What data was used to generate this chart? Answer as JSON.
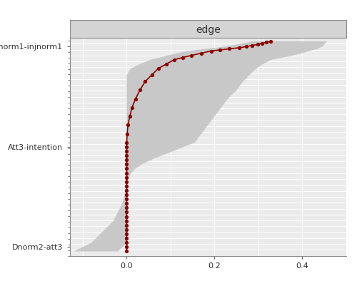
{
  "title": "edge",
  "title_bg": "#d4d4d4",
  "plot_bg": "#ebebeb",
  "ytick_labels": [
    "Dnorm2-att3",
    "Att3-intention",
    "Dnorm1-injnorm1"
  ],
  "ytick_positions": [
    0.04,
    0.5,
    0.96
  ],
  "xlim": [
    -0.13,
    0.5
  ],
  "ylim": [
    0.0,
    1.0
  ],
  "xticks": [
    0.0,
    0.2,
    0.4
  ],
  "xtick_labels": [
    "0.0",
    "0.2",
    "0.4"
  ],
  "line_color": "#8b0000",
  "ci_color": "#c8c8c8",
  "grid_color": "#ffffff",
  "n_hgrid": 38,
  "vgrid_x": [
    -0.1,
    0.0,
    0.1,
    0.2,
    0.3,
    0.4
  ],
  "line_x": [
    0.0,
    0.0,
    0.0,
    0.0,
    0.0,
    0.0,
    0.0,
    0.0,
    0.0,
    0.0,
    0.0,
    0.0,
    0.0,
    0.0,
    0.0,
    0.0,
    0.0,
    0.0,
    0.0,
    0.0,
    0.0,
    0.0,
    0.0,
    0.0,
    0.0,
    0.0,
    0.001,
    0.003,
    0.007,
    0.012,
    0.02,
    0.03,
    0.042,
    0.057,
    0.072,
    0.09,
    0.108,
    0.127,
    0.148,
    0.17,
    0.192,
    0.213,
    0.234,
    0.256,
    0.272,
    0.285,
    0.298,
    0.308,
    0.318,
    0.328
  ],
  "line_y": [
    0.02,
    0.04,
    0.06,
    0.08,
    0.1,
    0.12,
    0.14,
    0.16,
    0.18,
    0.2,
    0.22,
    0.24,
    0.26,
    0.28,
    0.3,
    0.32,
    0.34,
    0.36,
    0.38,
    0.4,
    0.42,
    0.44,
    0.46,
    0.48,
    0.5,
    0.52,
    0.56,
    0.6,
    0.64,
    0.68,
    0.72,
    0.76,
    0.8,
    0.83,
    0.86,
    0.88,
    0.9,
    0.91,
    0.92,
    0.93,
    0.94,
    0.945,
    0.95,
    0.955,
    0.96,
    0.965,
    0.97,
    0.975,
    0.98,
    0.985
  ],
  "ci_lower_x": [
    -0.12,
    -0.1,
    -0.08,
    -0.07,
    -0.06,
    -0.05,
    -0.04,
    -0.03,
    -0.025,
    -0.02,
    -0.015,
    -0.01,
    -0.007,
    -0.005,
    -0.003,
    -0.002,
    -0.001,
    0.0,
    0.0,
    0.0,
    0.0,
    0.0,
    0.0,
    0.0,
    0.0,
    0.0,
    0.0,
    0.0,
    0.0,
    0.0,
    0.0,
    0.0,
    0.0,
    0.0,
    0.01,
    0.03,
    0.055,
    0.075,
    0.095,
    0.115,
    0.138,
    0.16,
    0.182,
    0.204,
    0.22,
    0.236,
    0.252,
    0.264,
    0.276,
    0.288
  ],
  "ci_lower_y": [
    0.02,
    0.04,
    0.06,
    0.08,
    0.1,
    0.12,
    0.14,
    0.16,
    0.18,
    0.2,
    0.22,
    0.24,
    0.26,
    0.28,
    0.3,
    0.32,
    0.34,
    0.36,
    0.38,
    0.4,
    0.42,
    0.44,
    0.46,
    0.48,
    0.5,
    0.52,
    0.56,
    0.6,
    0.64,
    0.68,
    0.72,
    0.76,
    0.8,
    0.83,
    0.86,
    0.88,
    0.9,
    0.91,
    0.92,
    0.93,
    0.94,
    0.945,
    0.95,
    0.955,
    0.96,
    0.965,
    0.97,
    0.975,
    0.98,
    0.985
  ],
  "ci_upper_x": [
    -0.02,
    -0.01,
    0.0,
    0.0,
    0.0,
    0.0,
    0.0,
    0.0,
    0.0,
    0.0,
    0.0,
    0.0,
    0.0,
    0.0,
    0.0,
    0.0,
    0.002,
    0.005,
    0.01,
    0.02,
    0.035,
    0.055,
    0.08,
    0.105,
    0.13,
    0.155,
    0.17,
    0.185,
    0.2,
    0.215,
    0.23,
    0.25,
    0.265,
    0.28,
    0.295,
    0.31,
    0.33,
    0.355,
    0.38,
    0.4,
    0.415,
    0.425,
    0.435,
    0.44,
    0.445,
    0.448,
    0.45,
    0.452,
    0.454,
    0.456
  ],
  "ci_upper_y": [
    0.02,
    0.04,
    0.06,
    0.08,
    0.1,
    0.12,
    0.14,
    0.16,
    0.18,
    0.2,
    0.22,
    0.24,
    0.26,
    0.28,
    0.3,
    0.32,
    0.34,
    0.36,
    0.38,
    0.4,
    0.42,
    0.44,
    0.46,
    0.48,
    0.5,
    0.52,
    0.56,
    0.6,
    0.64,
    0.68,
    0.72,
    0.76,
    0.8,
    0.83,
    0.86,
    0.88,
    0.9,
    0.91,
    0.92,
    0.93,
    0.94,
    0.945,
    0.95,
    0.955,
    0.96,
    0.965,
    0.97,
    0.975,
    0.98,
    0.985
  ]
}
